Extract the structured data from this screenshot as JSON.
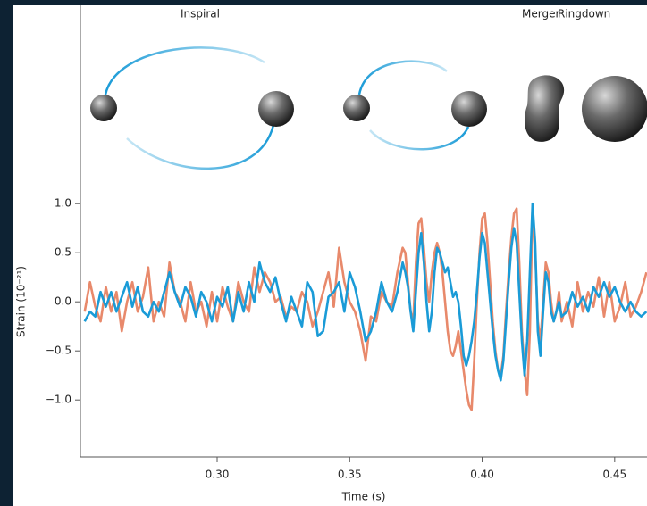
{
  "chart_data": {
    "type": "line",
    "annotations": [
      "Inspiral",
      "Merger",
      "Ringdown"
    ],
    "xlabel": "Time (s)",
    "ylabel": "Strain (10⁻²¹)",
    "xlim": [
      0.2484,
      0.4622
    ],
    "ylim": [
      -1.58,
      3.02
    ],
    "xticks": [
      {
        "value": 0.3,
        "label": "0.30"
      },
      {
        "value": 0.35,
        "label": "0.35"
      },
      {
        "value": 0.4,
        "label": "0.40"
      },
      {
        "value": 0.45,
        "label": "0.45"
      }
    ],
    "yticks": [
      {
        "value": -1.0,
        "label": "−1.0"
      },
      {
        "value": -0.5,
        "label": "−0.5"
      },
      {
        "value": 0.0,
        "label": "0.0"
      },
      {
        "value": 0.5,
        "label": "0.5"
      },
      {
        "value": 1.0,
        "label": "1.0"
      }
    ],
    "x": [
      0.25,
      0.252,
      0.254,
      0.256,
      0.258,
      0.26,
      0.262,
      0.264,
      0.266,
      0.268,
      0.27,
      0.272,
      0.274,
      0.276,
      0.278,
      0.28,
      0.282,
      0.284,
      0.286,
      0.288,
      0.29,
      0.292,
      0.294,
      0.296,
      0.298,
      0.3,
      0.302,
      0.304,
      0.306,
      0.308,
      0.31,
      0.312,
      0.314,
      0.316,
      0.318,
      0.32,
      0.322,
      0.324,
      0.326,
      0.328,
      0.33,
      0.332,
      0.334,
      0.336,
      0.338,
      0.34,
      0.342,
      0.344,
      0.346,
      0.348,
      0.35,
      0.352,
      0.354,
      0.356,
      0.358,
      0.36,
      0.362,
      0.364,
      0.366,
      0.368,
      0.37,
      0.371,
      0.372,
      0.373,
      0.374,
      0.375,
      0.376,
      0.377,
      0.378,
      0.379,
      0.38,
      0.381,
      0.382,
      0.383,
      0.384,
      0.385,
      0.386,
      0.387,
      0.388,
      0.389,
      0.39,
      0.391,
      0.392,
      0.393,
      0.394,
      0.395,
      0.396,
      0.397,
      0.398,
      0.399,
      0.4,
      0.401,
      0.402,
      0.403,
      0.404,
      0.405,
      0.406,
      0.407,
      0.408,
      0.409,
      0.41,
      0.411,
      0.412,
      0.413,
      0.414,
      0.415,
      0.416,
      0.417,
      0.418,
      0.419,
      0.42,
      0.421,
      0.422,
      0.423,
      0.424,
      0.425,
      0.426,
      0.427,
      0.428,
      0.429,
      0.43,
      0.432,
      0.434,
      0.436,
      0.438,
      0.44,
      0.442,
      0.444,
      0.446,
      0.448,
      0.45,
      0.452,
      0.454,
      0.456,
      0.458,
      0.46,
      0.462
    ],
    "series": [
      {
        "color": "#e8896b",
        "values": [
          -0.1,
          0.2,
          -0.05,
          -0.2,
          0.15,
          -0.1,
          0.1,
          -0.3,
          0.0,
          0.2,
          -0.1,
          0.05,
          0.35,
          -0.2,
          0.0,
          -0.15,
          0.4,
          0.1,
          0.0,
          -0.2,
          0.2,
          -0.1,
          0.0,
          -0.25,
          0.1,
          -0.2,
          0.15,
          -0.05,
          -0.2,
          0.2,
          0.0,
          -0.1,
          0.35,
          0.1,
          0.3,
          0.2,
          0.0,
          0.05,
          -0.15,
          -0.05,
          -0.1,
          0.1,
          0.0,
          -0.25,
          -0.1,
          0.1,
          0.3,
          -0.05,
          0.55,
          0.2,
          0.0,
          -0.1,
          -0.3,
          -0.6,
          -0.15,
          -0.2,
          0.1,
          0.0,
          -0.05,
          0.3,
          0.55,
          0.5,
          0.2,
          -0.1,
          -0.2,
          0.4,
          0.8,
          0.85,
          0.55,
          0.2,
          0.0,
          0.3,
          0.5,
          0.6,
          0.5,
          0.3,
          0.0,
          -0.3,
          -0.5,
          -0.55,
          -0.45,
          -0.3,
          -0.5,
          -0.7,
          -0.9,
          -1.05,
          -1.1,
          -0.6,
          0.0,
          0.5,
          0.85,
          0.9,
          0.6,
          0.2,
          -0.2,
          -0.5,
          -0.7,
          -0.75,
          -0.55,
          -0.1,
          0.3,
          0.65,
          0.9,
          0.95,
          0.4,
          -0.3,
          -0.7,
          -0.95,
          -0.3,
          0.95,
          0.5,
          -0.2,
          -0.4,
          0.0,
          0.4,
          0.3,
          0.0,
          -0.2,
          -0.1,
          0.1,
          -0.2,
          0.0,
          -0.25,
          0.2,
          -0.1,
          0.1,
          -0.05,
          0.25,
          -0.15,
          0.2,
          -0.2,
          -0.05,
          0.2,
          -0.15,
          -0.05,
          0.1,
          0.3
        ]
      },
      {
        "color": "#1a9bd7",
        "values": [
          -0.2,
          -0.1,
          -0.15,
          0.1,
          -0.05,
          0.1,
          -0.1,
          0.05,
          0.2,
          -0.05,
          0.15,
          -0.1,
          -0.15,
          0.0,
          -0.1,
          0.1,
          0.3,
          0.1,
          -0.05,
          0.15,
          0.05,
          -0.15,
          0.1,
          0.0,
          -0.2,
          0.05,
          -0.05,
          0.15,
          -0.2,
          0.1,
          -0.1,
          0.2,
          0.0,
          0.4,
          0.2,
          0.1,
          0.25,
          0.0,
          -0.2,
          0.05,
          -0.1,
          -0.25,
          0.2,
          0.1,
          -0.35,
          -0.3,
          0.05,
          0.1,
          0.2,
          -0.1,
          0.3,
          0.15,
          -0.1,
          -0.4,
          -0.3,
          -0.1,
          0.2,
          0.0,
          -0.1,
          0.1,
          0.4,
          0.3,
          0.15,
          -0.1,
          -0.3,
          0.1,
          0.5,
          0.7,
          0.4,
          0.0,
          -0.3,
          -0.1,
          0.3,
          0.55,
          0.5,
          0.4,
          0.3,
          0.35,
          0.2,
          0.05,
          0.1,
          0.0,
          -0.25,
          -0.55,
          -0.65,
          -0.55,
          -0.4,
          -0.2,
          0.1,
          0.45,
          0.7,
          0.6,
          0.3,
          0.0,
          -0.3,
          -0.55,
          -0.7,
          -0.8,
          -0.6,
          -0.2,
          0.2,
          0.55,
          0.75,
          0.6,
          0.1,
          -0.4,
          -0.75,
          -0.4,
          0.3,
          1.0,
          0.6,
          -0.3,
          -0.55,
          -0.1,
          0.3,
          0.2,
          -0.1,
          -0.2,
          -0.1,
          0.0,
          -0.15,
          -0.1,
          0.1,
          -0.05,
          0.05,
          -0.1,
          0.15,
          0.05,
          0.2,
          0.05,
          0.15,
          0.0,
          -0.1,
          0.0,
          -0.1,
          -0.15,
          -0.1
        ]
      }
    ]
  }
}
